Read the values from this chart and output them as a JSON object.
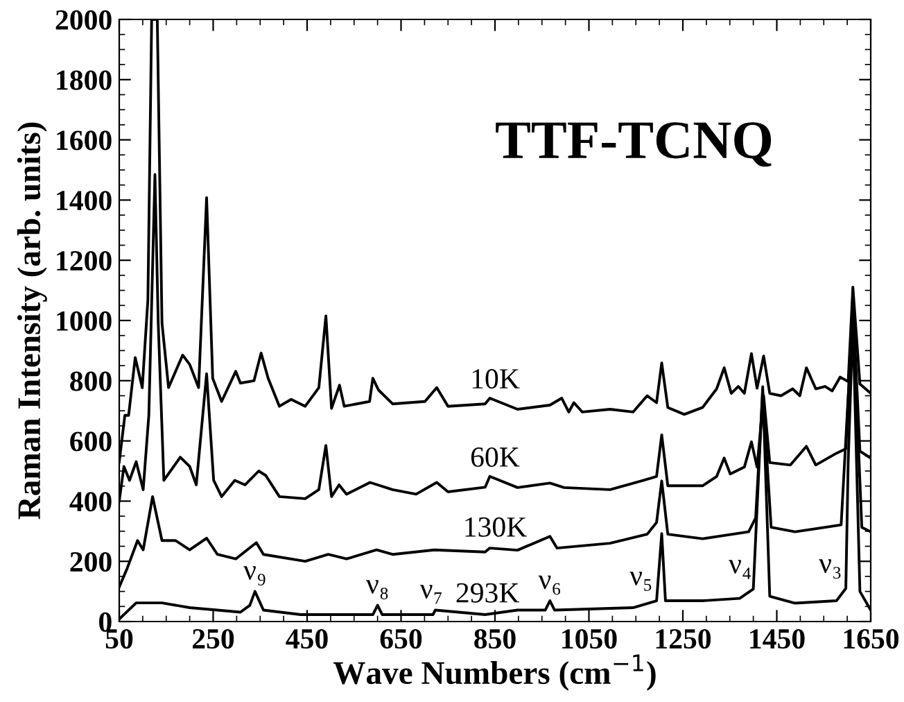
{
  "chart_data": {
    "type": "line",
    "title": "TTF-TCNQ",
    "xlabel": "Wave Numbers (cm$^{−1}$)",
    "ylabel": "Raman Intensity (arb. units)",
    "xlim": [
      50,
      1650
    ],
    "xticks": [
      50,
      250,
      450,
      650,
      850,
      1050,
      1250,
      1450,
      1650
    ],
    "ylim": [
      0,
      2000
    ],
    "yticks": [
      0,
      200,
      400,
      600,
      800,
      1000,
      1200,
      1400,
      1600,
      1800,
      2000
    ],
    "grid": false,
    "legend": false,
    "marker": "none",
    "line_style": "solid",
    "series": [
      {
        "name": "10K",
        "color": "#000000",
        "x": [
          50,
          62,
          70,
          84,
          99,
          111,
          119,
          131,
          141,
          155,
          185,
          200,
          219,
          236,
          249,
          268,
          298,
          308,
          337,
          352,
          367,
          391,
          416,
          446,
          475,
          490,
          502,
          519,
          529,
          583,
          590,
          602,
          632,
          701,
          726,
          750,
          829,
          839,
          898,
          967,
          992,
          1007,
          1018,
          1036,
          1095,
          1144,
          1174,
          1194,
          1205,
          1218,
          1253,
          1292,
          1322,
          1338,
          1353,
          1368,
          1381,
          1396,
          1408,
          1422,
          1435,
          1459,
          1484,
          1499,
          1513,
          1533,
          1553,
          1568,
          1585,
          1602,
          1612,
          1627,
          1650
        ],
        "values": [
          530,
          685,
          685,
          877,
          777,
          1069,
          2000,
          2000,
          992,
          777,
          885,
          854,
          777,
          1408,
          808,
          731,
          831,
          792,
          800,
          892,
          808,
          715,
          738,
          715,
          777,
          1015,
          708,
          785,
          715,
          731,
          808,
          769,
          723,
          731,
          777,
          715,
          723,
          742,
          705,
          719,
          742,
          696,
          727,
          696,
          705,
          696,
          750,
          727,
          859,
          711,
          688,
          711,
          773,
          843,
          758,
          781,
          758,
          890,
          775,
          882,
          758,
          750,
          773,
          750,
          843,
          773,
          781,
          766,
          812,
          797,
          1111,
          789,
          758
        ]
      },
      {
        "name": "60K",
        "color": "#000000",
        "x": [
          50,
          60,
          72,
          86,
          101,
          113,
          126,
          133,
          145,
          180,
          200,
          214,
          236,
          251,
          268,
          296,
          318,
          347,
          362,
          391,
          446,
          475,
          490,
          502,
          518,
          534,
          584,
          632,
          682,
          726,
          750,
          829,
          839,
          898,
          967,
          997,
          1095,
          1164,
          1194,
          1205,
          1218,
          1292,
          1322,
          1338,
          1351,
          1381,
          1396,
          1408,
          1422,
          1435,
          1479,
          1513,
          1533,
          1577,
          1597,
          1612,
          1627,
          1650
        ],
        "values": [
          400,
          515,
          469,
          531,
          438,
          685,
          1485,
          992,
          469,
          546,
          515,
          454,
          823,
          469,
          415,
          469,
          454,
          500,
          485,
          415,
          408,
          438,
          585,
          415,
          454,
          423,
          462,
          438,
          423,
          462,
          431,
          446,
          482,
          445,
          460,
          445,
          438,
          468,
          482,
          620,
          451,
          451,
          482,
          543,
          490,
          513,
          597,
          513,
          750,
          528,
          520,
          582,
          520,
          559,
          574,
          1060,
          566,
          543
        ]
      },
      {
        "name": "130K",
        "color": "#000000",
        "x": [
          50,
          67,
          89,
          101,
          121,
          141,
          170,
          200,
          236,
          259,
          298,
          342,
          357,
          446,
          495,
          534,
          598,
          632,
          721,
          829,
          839,
          898,
          967,
          982,
          1095,
          1174,
          1194,
          1205,
          1218,
          1292,
          1390,
          1405,
          1420,
          1438,
          1489,
          1587,
          1612,
          1631,
          1650
        ],
        "values": [
          115,
          177,
          269,
          238,
          415,
          269,
          269,
          238,
          277,
          223,
          208,
          262,
          223,
          200,
          223,
          208,
          238,
          223,
          238,
          231,
          244,
          237,
          283,
          244,
          260,
          290,
          329,
          467,
          290,
          275,
          298,
          344,
          760,
          313,
          298,
          321,
          1030,
          313,
          298
        ]
      },
      {
        "name": "293K",
        "color": "#000000",
        "x": [
          50,
          86,
          141,
          200,
          259,
          308,
          328,
          339,
          357,
          436,
          590,
          600,
          610,
          718,
          723,
          829,
          898,
          957,
          967,
          977,
          1144,
          1194,
          1205,
          1213,
          1292,
          1371,
          1400,
          1420,
          1435,
          1489,
          1577,
          1597,
          1602,
          1612,
          1627,
          1650
        ],
        "values": [
          8,
          62,
          62,
          46,
          38,
          31,
          54,
          100,
          38,
          23,
          23,
          54,
          23,
          23,
          38,
          23,
          38,
          38,
          69,
          38,
          46,
          69,
          292,
          69,
          69,
          77,
          108,
          780,
          84,
          61,
          69,
          110,
          530,
          1000,
          100,
          38
        ]
      }
    ],
    "annotations": [
      {
        "text": "ν₉",
        "x": 339,
        "y": 100
      },
      {
        "text": "ν₈",
        "x": 600,
        "y": 54
      },
      {
        "text": "ν₇",
        "x": 723,
        "y": 38
      },
      {
        "text": "ν₆",
        "x": 967,
        "y": 69
      },
      {
        "text": "ν₅",
        "x": 1194,
        "y": 69
      },
      {
        "text": "ν₄",
        "x": 1405,
        "y": 108
      },
      {
        "text": "ν₃",
        "x": 1597,
        "y": 110
      }
    ]
  }
}
